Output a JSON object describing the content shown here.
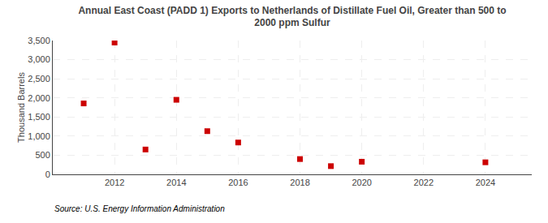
{
  "chart_data": {
    "type": "scatter",
    "title": "Annual East Coast (PADD 1) Exports to Netherlands of Distillate Fuel Oil, Greater than 500 to\n2000 ppm Sulfur",
    "ylabel": "Thousand Barrels",
    "source": "Source: U.S. Energy Information Administration",
    "x": [
      2011,
      2012,
      2013,
      2014,
      2015,
      2016,
      2018,
      2019,
      2020,
      2024
    ],
    "values": [
      1855,
      3448,
      650,
      1950,
      1130,
      833,
      400,
      215,
      330,
      315
    ],
    "color": "#cc0000",
    "marker": "square",
    "xlim": [
      2010.0,
      2025.5
    ],
    "ylim": [
      0,
      3500
    ],
    "xticks": [
      2012,
      2014,
      2016,
      2018,
      2020,
      2022,
      2024
    ],
    "yticks": [
      0,
      500,
      {
        "value": 1000,
        "label": "1,000"
      },
      {
        "value": 1500,
        "label": "1,500"
      },
      {
        "value": 2000,
        "label": "2,000"
      },
      {
        "value": 2500,
        "label": "2,500"
      },
      {
        "value": 3000,
        "label": "3,000"
      },
      {
        "value": 3500,
        "label": "3,500"
      }
    ],
    "grid": true
  }
}
